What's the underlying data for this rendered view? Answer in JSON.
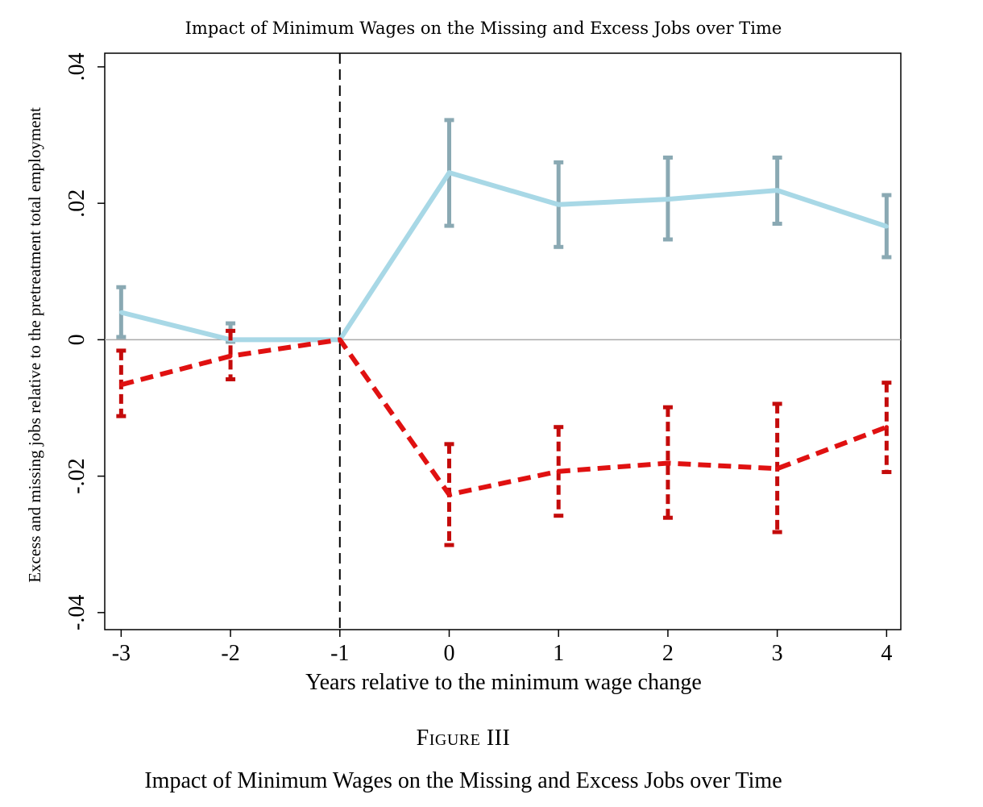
{
  "chart_data": {
    "type": "line",
    "title": "Impact of Minimum Wages on the Missing and Excess Jobs over Time",
    "xlabel": "Years relative to the minimum wage change",
    "ylabel": "Excess and missing jobs relative to the pretreatment total employment",
    "x": [
      -3,
      -2,
      -1,
      0,
      1,
      2,
      3,
      4
    ],
    "x_tick_labels": [
      "-3",
      "-2",
      "-1",
      "0",
      "1",
      "2",
      "3",
      "4"
    ],
    "xlim": [
      -3.15,
      4.13
    ],
    "ylim": [
      -0.0425,
      0.042
    ],
    "y_ticks": [
      0.04,
      0.02,
      0,
      -0.02,
      -0.04
    ],
    "y_tick_labels": [
      ".04",
      ".02",
      "0",
      "-.02",
      "-.04"
    ],
    "zero_line": true,
    "treatment_line_x": -1,
    "grid": false,
    "series": [
      {
        "line_color": "#a8d8e6",
        "bar_color": "#8aa9b3",
        "style": "solid",
        "values": [
          0.004,
          0.0,
          0.0,
          0.0245,
          0.0198,
          0.0206,
          0.0219,
          0.0166
        ],
        "ci_low": [
          0.0004,
          -0.0003,
          0.0,
          0.0167,
          0.0136,
          0.0147,
          0.017,
          0.0121
        ],
        "ci_high": [
          0.0077,
          0.0024,
          0.0,
          0.0322,
          0.026,
          0.0267,
          0.0267,
          0.0212
        ]
      },
      {
        "line_color": "#e01111",
        "bar_color": "#c40b0b",
        "style": "dashed",
        "values": [
          -0.0066,
          -0.0024,
          0.0,
          -0.0227,
          -0.0193,
          -0.0181,
          -0.0189,
          -0.0128
        ],
        "ci_low": [
          -0.0112,
          -0.0058,
          0.0,
          -0.0301,
          -0.0258,
          -0.0261,
          -0.0282,
          -0.0194
        ],
        "ci_high": [
          -0.0016,
          0.0013,
          0.0,
          -0.0153,
          -0.0128,
          -0.0099,
          -0.0094,
          -0.0063
        ]
      }
    ]
  },
  "figure": {
    "number": "Figure III",
    "caption": "Impact of Minimum Wages on the Missing and Excess Jobs over Time"
  }
}
